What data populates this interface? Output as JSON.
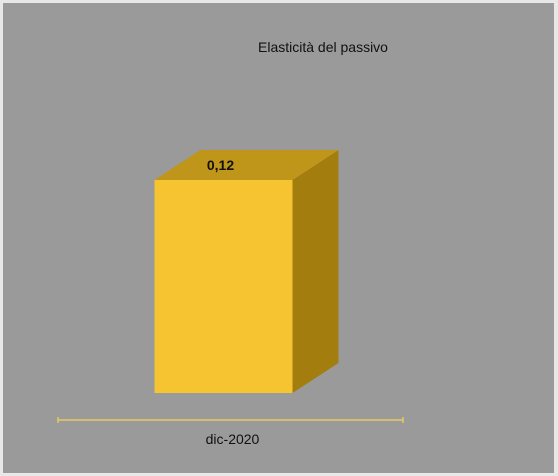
{
  "chart_data": {
    "type": "bar",
    "title": "Elasticità del passivo",
    "categories": [
      "dic-2020"
    ],
    "values": [
      0.12
    ],
    "value_labels": [
      "0,12"
    ],
    "xlabel": "",
    "ylabel": "",
    "grid": false,
    "legend": "none",
    "style": "3d-column"
  },
  "colors": {
    "background": "#9a9a9a",
    "bar_front": "#f7c431",
    "bar_top": "#bf961a",
    "bar_side": "#a37d0e",
    "axis": "#e7c964",
    "frame": "#e8e8e8"
  }
}
